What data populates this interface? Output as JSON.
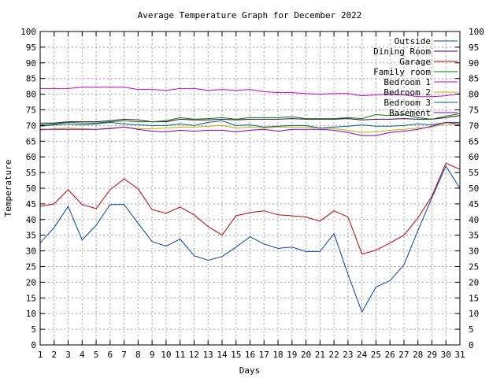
{
  "chart_data": {
    "type": "line",
    "title": "Average Temperature Graph for December 2022",
    "xlabel": "Days",
    "ylabel": "Temperature",
    "xlim": [
      1,
      31
    ],
    "ylim": [
      0,
      100
    ],
    "y_ticks": [
      0,
      5,
      10,
      15,
      20,
      25,
      30,
      35,
      40,
      45,
      50,
      55,
      60,
      65,
      70,
      75,
      80,
      85,
      90,
      95,
      100
    ],
    "x": [
      1,
      2,
      3,
      4,
      5,
      6,
      7,
      8,
      9,
      10,
      11,
      12,
      13,
      14,
      15,
      16,
      17,
      18,
      19,
      20,
      21,
      22,
      23,
      24,
      25,
      26,
      27,
      28,
      29,
      30,
      31
    ],
    "grid": true,
    "legend_position": "top-right",
    "series": [
      {
        "name": "Outside",
        "color": "#0042b0",
        "values": [
          32.5,
          37.5,
          44.2,
          33.5,
          38.2,
          44.8,
          44.8,
          38.8,
          33.0,
          31.5,
          33.8,
          28.5,
          27.0,
          28.2,
          31.2,
          34.5,
          32.2,
          30.8,
          31.2,
          29.8,
          29.8,
          35.5,
          22.5,
          10.5,
          18.5,
          20.5,
          25.5,
          36.5,
          47.0,
          57.0,
          50.0
        ]
      },
      {
        "name": "Dining Room",
        "color": "#40004d",
        "values": [
          70.8,
          70.8,
          71.2,
          71.2,
          71.2,
          71.5,
          72.0,
          71.8,
          71.2,
          71.2,
          72.0,
          71.8,
          71.8,
          72.0,
          71.8,
          72.0,
          72.0,
          72.0,
          72.2,
          72.0,
          72.0,
          72.0,
          72.2,
          71.8,
          72.0,
          72.0,
          72.2,
          72.0,
          72.0,
          72.5,
          73.2
        ]
      },
      {
        "name": "Garage",
        "color": "#c00000",
        "values": [
          44.2,
          45.0,
          49.5,
          44.8,
          43.5,
          49.5,
          53.0,
          49.8,
          43.2,
          42.0,
          44.0,
          41.5,
          37.8,
          35.0,
          41.2,
          42.2,
          42.8,
          41.5,
          41.2,
          40.8,
          39.5,
          42.8,
          40.8,
          29.0,
          30.2,
          32.5,
          35.0,
          40.5,
          47.5,
          58.0,
          56.0
        ]
      },
      {
        "name": "Family room",
        "color": "#008000",
        "values": [
          70.2,
          70.5,
          71.0,
          70.8,
          70.8,
          71.2,
          71.5,
          71.2,
          71.2,
          71.5,
          72.5,
          72.0,
          72.2,
          72.5,
          72.0,
          72.5,
          72.5,
          72.5,
          72.8,
          72.2,
          72.2,
          72.2,
          72.5,
          72.2,
          73.5,
          73.2,
          73.5,
          72.5,
          72.0,
          73.0,
          73.8
        ]
      },
      {
        "name": "Bedroom 1",
        "color": "#cc00cc",
        "values": [
          81.8,
          81.8,
          81.8,
          82.2,
          82.2,
          82.2,
          82.2,
          81.5,
          81.5,
          81.2,
          81.8,
          81.8,
          81.2,
          81.5,
          81.2,
          81.5,
          80.8,
          80.5,
          80.5,
          80.2,
          80.0,
          80.2,
          80.2,
          79.5,
          79.8,
          80.0,
          79.8,
          79.2,
          79.2,
          79.5,
          80.2
        ]
      },
      {
        "name": "Bedroom 2",
        "color": "#c8a800",
        "values": [
          68.5,
          69.0,
          69.2,
          69.0,
          68.8,
          69.2,
          69.5,
          69.0,
          69.0,
          69.2,
          69.5,
          69.5,
          69.8,
          70.0,
          69.2,
          69.5,
          69.2,
          69.5,
          69.5,
          69.5,
          69.2,
          69.0,
          68.5,
          67.8,
          68.0,
          68.5,
          68.8,
          69.2,
          69.5,
          70.5,
          70.2
        ]
      },
      {
        "name": "Bedroom 3",
        "color": "#006080",
        "values": [
          69.8,
          70.2,
          70.5,
          70.2,
          70.5,
          71.0,
          70.5,
          70.2,
          70.0,
          70.0,
          70.5,
          70.0,
          71.0,
          71.5,
          70.0,
          70.2,
          69.5,
          69.8,
          70.0,
          70.0,
          69.2,
          69.5,
          69.8,
          70.2,
          69.8,
          69.8,
          70.0,
          70.5,
          70.2,
          71.0,
          71.0
        ]
      },
      {
        "name": "Basement",
        "color": "#8000c0",
        "values": [
          68.8,
          68.8,
          68.8,
          68.8,
          68.8,
          69.0,
          69.5,
          68.8,
          68.2,
          68.0,
          68.5,
          68.2,
          68.5,
          68.5,
          68.0,
          68.5,
          68.8,
          68.2,
          68.8,
          68.8,
          68.8,
          68.5,
          67.8,
          66.8,
          66.8,
          67.8,
          68.2,
          68.8,
          69.8,
          71.0,
          70.5
        ]
      }
    ]
  }
}
